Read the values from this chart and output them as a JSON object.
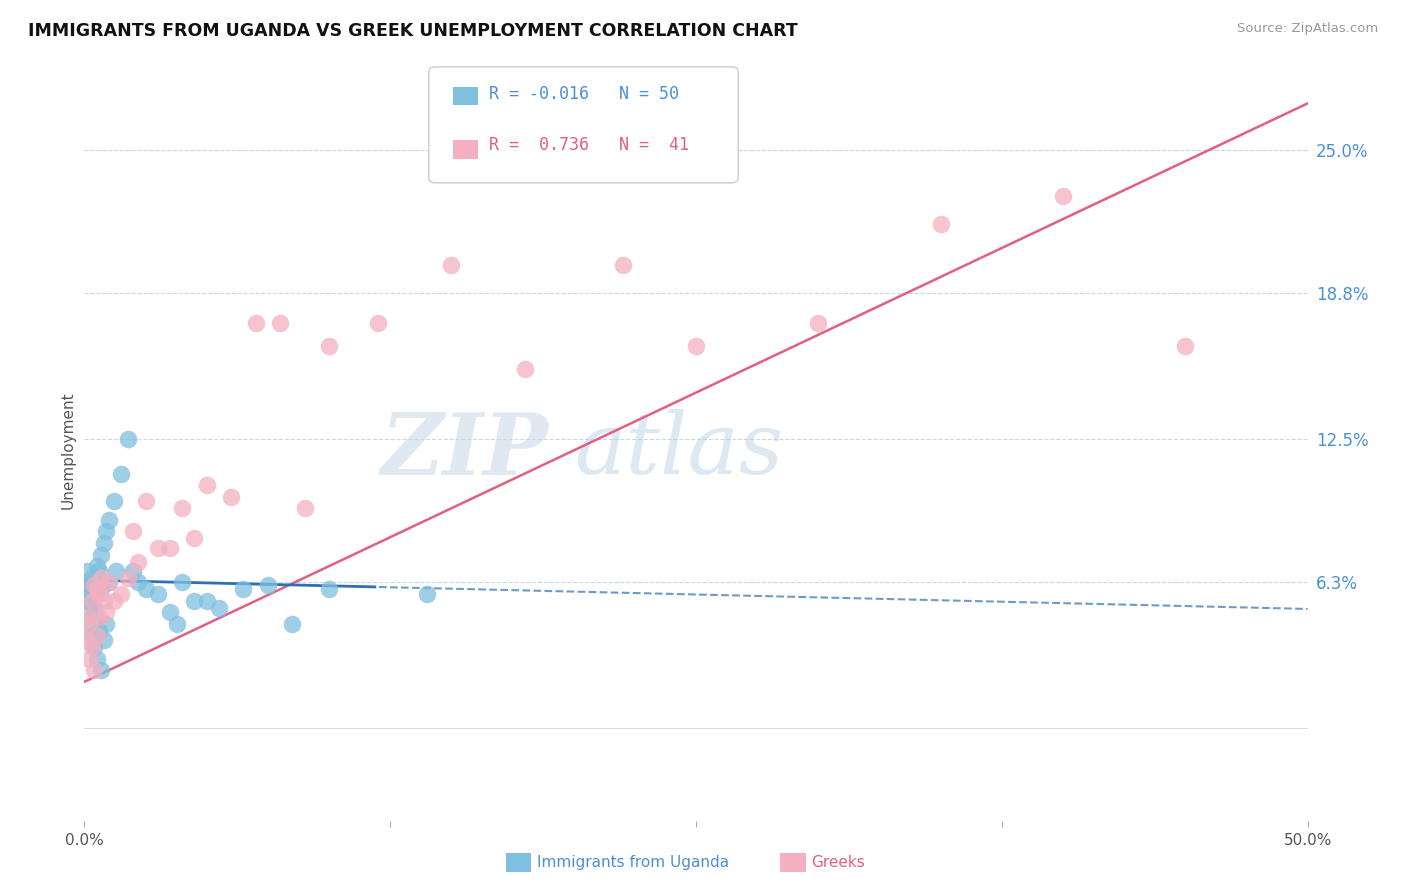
{
  "title": "IMMIGRANTS FROM UGANDA VS GREEK UNEMPLOYMENT CORRELATION CHART",
  "source": "Source: ZipAtlas.com",
  "ylabel": "Unemployment",
  "legend_label_blue": "Immigrants from Uganda",
  "legend_label_pink": "Greeks",
  "legend_r_blue": "R = -0.016",
  "legend_n_blue": "N = 50",
  "legend_r_pink": "R =  0.736",
  "legend_n_pink": "N =  41",
  "x_min": 0.0,
  "x_max": 0.5,
  "y_min": -0.04,
  "y_max": 0.28,
  "y_tick_right": [
    0.063,
    0.125,
    0.188,
    0.25
  ],
  "y_tick_right_labels": [
    "6.3%",
    "12.5%",
    "18.8%",
    "25.0%"
  ],
  "color_blue": "#7fbfdf",
  "color_pink": "#f4b0c0",
  "color_blue_line": "#3070b0",
  "color_pink_line": "#e06080",
  "color_grid": "#c8d8e8",
  "watermark_zip": "ZIP",
  "watermark_atlas": "atlas",
  "blue_scatter_x": [
    0.0005,
    0.001,
    0.001,
    0.0015,
    0.002,
    0.002,
    0.002,
    0.003,
    0.003,
    0.003,
    0.003,
    0.004,
    0.004,
    0.004,
    0.004,
    0.005,
    0.005,
    0.005,
    0.005,
    0.006,
    0.006,
    0.006,
    0.007,
    0.007,
    0.007,
    0.008,
    0.008,
    0.009,
    0.009,
    0.01,
    0.01,
    0.012,
    0.013,
    0.015,
    0.018,
    0.02,
    0.022,
    0.025,
    0.03,
    0.035,
    0.038,
    0.04,
    0.045,
    0.05,
    0.055,
    0.065,
    0.075,
    0.085,
    0.1,
    0.14
  ],
  "blue_scatter_y": [
    0.063,
    0.068,
    0.06,
    0.058,
    0.055,
    0.05,
    0.045,
    0.065,
    0.06,
    0.055,
    0.04,
    0.062,
    0.058,
    0.052,
    0.035,
    0.07,
    0.065,
    0.048,
    0.03,
    0.068,
    0.062,
    0.042,
    0.075,
    0.06,
    0.025,
    0.08,
    0.038,
    0.085,
    0.045,
    0.09,
    0.063,
    0.098,
    0.068,
    0.11,
    0.125,
    0.068,
    0.063,
    0.06,
    0.058,
    0.05,
    0.045,
    0.063,
    0.055,
    0.055,
    0.052,
    0.06,
    0.062,
    0.045,
    0.06,
    0.058
  ],
  "pink_scatter_x": [
    0.001,
    0.001,
    0.002,
    0.002,
    0.003,
    0.003,
    0.004,
    0.004,
    0.005,
    0.005,
    0.006,
    0.006,
    0.007,
    0.008,
    0.009,
    0.01,
    0.012,
    0.015,
    0.018,
    0.02,
    0.022,
    0.025,
    0.03,
    0.035,
    0.04,
    0.045,
    0.05,
    0.06,
    0.07,
    0.08,
    0.09,
    0.1,
    0.12,
    0.15,
    0.18,
    0.22,
    0.25,
    0.3,
    0.35,
    0.4,
    0.45
  ],
  "pink_scatter_y": [
    0.048,
    0.038,
    0.045,
    0.03,
    0.055,
    0.035,
    0.062,
    0.025,
    0.06,
    0.04,
    0.058,
    0.048,
    0.065,
    0.055,
    0.05,
    0.063,
    0.055,
    0.058,
    0.065,
    0.085,
    0.072,
    0.098,
    0.078,
    0.078,
    0.095,
    0.082,
    0.105,
    0.1,
    0.175,
    0.175,
    0.095,
    0.165,
    0.175,
    0.2,
    0.155,
    0.2,
    0.165,
    0.175,
    0.218,
    0.23,
    0.165
  ],
  "blue_line_slope": -0.025,
  "blue_line_intercept": 0.064,
  "pink_line_slope": 0.5,
  "pink_line_intercept": 0.02
}
